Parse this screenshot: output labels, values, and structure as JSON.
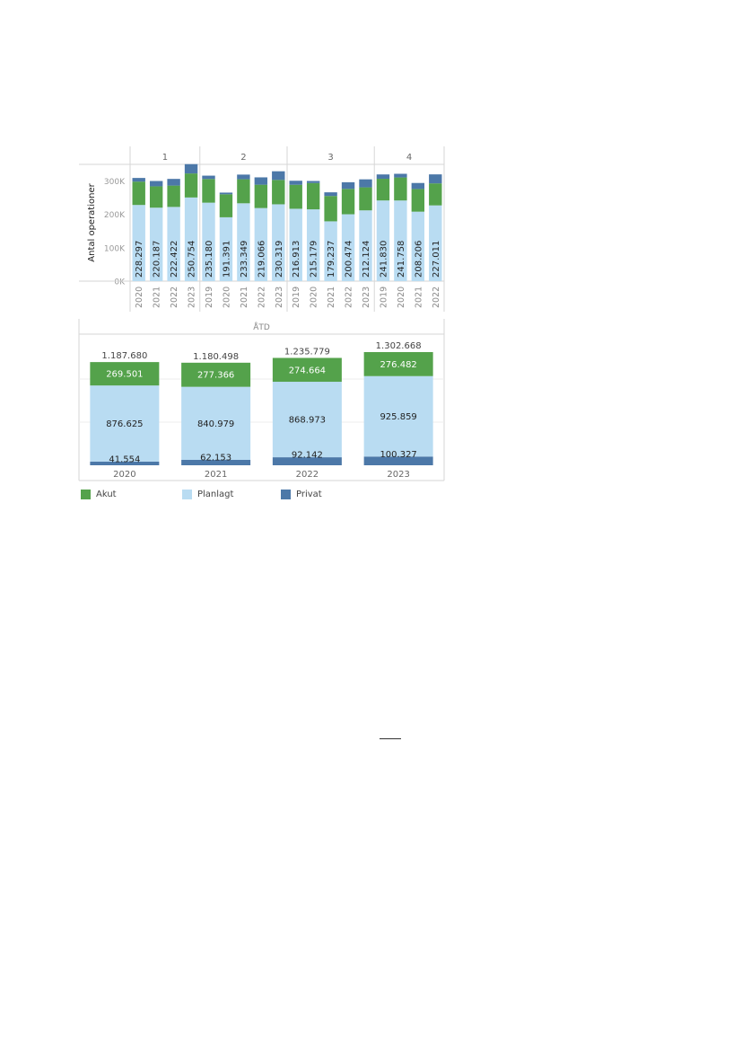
{
  "colors": {
    "akut": "#54a24b",
    "planlagt": "#b9dcf2",
    "privat": "#4c78a8",
    "axis": "#999999",
    "divider": "#d6d6d6"
  },
  "legend": [
    {
      "label": "Akut",
      "color": "#54a24b"
    },
    {
      "label": "Planlagt",
      "color": "#b9dcf2"
    },
    {
      "label": "Privat",
      "color": "#4c78a8"
    }
  ],
  "chart_data": [
    {
      "type": "bar",
      "stacked": true,
      "ylabel": "Antal operationer",
      "yticks": [
        "0K",
        "100K",
        "200K",
        "300K"
      ],
      "ylim": [
        0,
        350000
      ],
      "panels": [
        {
          "label": "1",
          "categories": [
            "2020",
            "2021",
            "2022",
            "2023"
          ],
          "planlagt": [
            228297,
            220187,
            222422,
            250754
          ],
          "akut": [
            70000,
            64000,
            64000,
            72000
          ],
          "privat": [
            11000,
            16000,
            20000,
            28000
          ]
        },
        {
          "label": "2",
          "categories": [
            "2019",
            "2020",
            "2021",
            "2022",
            "2023"
          ],
          "planlagt": [
            235180,
            191391,
            233349,
            219066,
            230319
          ],
          "akut": [
            71000,
            69000,
            72000,
            70000,
            73000
          ],
          "privat": [
            10000,
            5000,
            14000,
            22000,
            26000
          ]
        },
        {
          "label": "3",
          "categories": [
            "2019",
            "2020",
            "2021",
            "2022",
            "2023"
          ],
          "planlagt": [
            216913,
            215179,
            179237,
            200474,
            212124
          ],
          "akut": [
            72000,
            79000,
            76000,
            76000,
            69000
          ],
          "privat": [
            12000,
            6000,
            11000,
            20000,
            24000
          ]
        },
        {
          "label": "4",
          "categories": [
            "2019",
            "2020",
            "2021",
            "2022"
          ],
          "planlagt": [
            241830,
            241758,
            208206,
            227011
          ],
          "akut": [
            65000,
            69000,
            68000,
            66000
          ],
          "privat": [
            13000,
            11000,
            18000,
            27000
          ]
        }
      ],
      "planlagt_labels": [
        [
          "228.297",
          "220.187",
          "222.422",
          "250.754"
        ],
        [
          "235.180",
          "191.391",
          "233.349",
          "219.066",
          "230.319"
        ],
        [
          "216.913",
          "215.179",
          "179.237",
          "200.474",
          "212.124"
        ],
        [
          "241.830",
          "241.758",
          "208.206",
          "227.011"
        ]
      ]
    },
    {
      "type": "bar",
      "stacked": true,
      "title": "ÅTD",
      "categories": [
        "2020",
        "2021",
        "2022",
        "2023"
      ],
      "series": [
        {
          "name": "Privat",
          "values": [
            41554,
            62153,
            92142,
            100327
          ],
          "labels": [
            "41.554",
            "62.153",
            "92.142",
            "100.327"
          ]
        },
        {
          "name": "Planlagt",
          "values": [
            876625,
            840979,
            868973,
            925859
          ],
          "labels": [
            "876.625",
            "840.979",
            "868.973",
            "925.859"
          ]
        },
        {
          "name": "Akut",
          "values": [
            269501,
            277366,
            274664,
            276482
          ],
          "labels": [
            "269.501",
            "277.366",
            "274.664",
            "276.482"
          ]
        }
      ],
      "totals": [
        1187680,
        1180498,
        1235779,
        1302668
      ],
      "total_labels": [
        "1.187.680",
        "1.180.498",
        "1.235.779",
        "1.302.668"
      ],
      "ylim": [
        0,
        1302668
      ]
    }
  ]
}
